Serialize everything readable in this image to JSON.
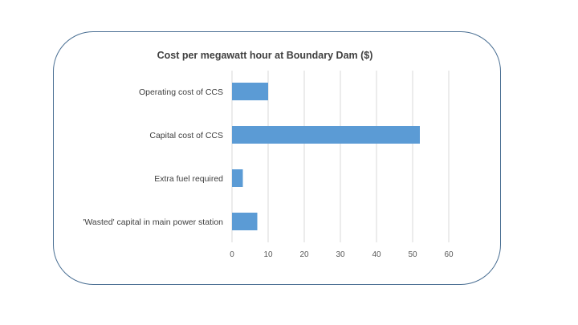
{
  "chart_data": {
    "type": "bar",
    "orientation": "horizontal",
    "title": "Cost per megawatt hour at Boundary Dam ($)",
    "categories": [
      "Operating cost of CCS",
      "Capital cost of CCS",
      "Extra fuel required",
      "'Wasted' capital in main power station"
    ],
    "values": [
      10,
      52,
      3,
      7
    ],
    "xlim": [
      0,
      60
    ],
    "xticks": [
      "0",
      "10",
      "20",
      "30",
      "40",
      "50",
      "60"
    ],
    "grid": "vertical",
    "bar_color": "#5b9bd5",
    "legend": "none"
  }
}
